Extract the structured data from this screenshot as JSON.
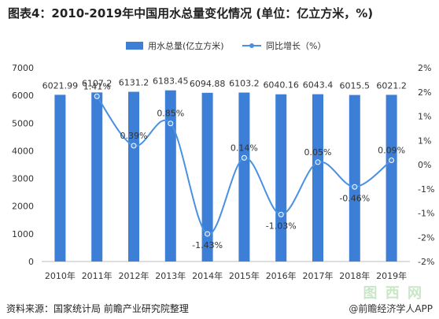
{
  "chart_data": {
    "type": "bar+line",
    "title": "图表4：2010-2019年中国用水总量变化情况 (单位：亿立方米，%)",
    "categories": [
      "2010年",
      "2011年",
      "2012年",
      "2013年",
      "2014年",
      "2015年",
      "2016年",
      "2017年",
      "2018年",
      "2019年"
    ],
    "series": [
      {
        "name": "用水总量(亿立方米)",
        "type": "bar",
        "axis": "left",
        "values": [
          6021.99,
          6107.2,
          6131.2,
          6183.45,
          6094.88,
          6103.2,
          6040.16,
          6043.4,
          6015.5,
          6021.2
        ],
        "labels": [
          "6021.99",
          "6107.2",
          "6131.2",
          "6183.45",
          "6094.88",
          "6103.2",
          "6040.16",
          "6043.4",
          "6015.5",
          "6021.2"
        ],
        "color": "#3d7ed6"
      },
      {
        "name": "同比增长（%）",
        "type": "line",
        "axis": "right",
        "values": [
          null,
          1.41,
          0.39,
          0.85,
          -1.43,
          0.14,
          -1.03,
          0.05,
          -0.46,
          0.09
        ],
        "labels": [
          "",
          "1.41%",
          "0.39%",
          "0.85%",
          "-1.43%",
          "0.14%",
          "-1.03%",
          "0.05%",
          "-0.46%",
          "0.09%"
        ],
        "color": "#4a90e2"
      }
    ],
    "yleft": {
      "ylim": [
        0,
        7000
      ],
      "ticks": [
        0,
        1000,
        2000,
        3000,
        4000,
        5000,
        6000,
        7000
      ],
      "tick_labels": [
        "0",
        "1000",
        "2000",
        "3000",
        "4000",
        "5000",
        "6000",
        "7000"
      ]
    },
    "yright": {
      "ylim": [
        -2,
        2
      ],
      "ticks": [
        2,
        1.5,
        1,
        0.5,
        0,
        -0.5,
        -1,
        -1.5,
        -2
      ],
      "tick_labels": [
        "2%",
        "2%",
        "1%",
        "1%",
        "0%",
        "-1%",
        "-1%",
        "-2%",
        "-2%"
      ]
    },
    "legend_position": "top-center",
    "grid": false
  },
  "footer": {
    "source": "资料来源：国家统计局 前瞻产业研究院整理",
    "brand": "@前瞻经济学人APP",
    "stamp": "图 西 网"
  }
}
